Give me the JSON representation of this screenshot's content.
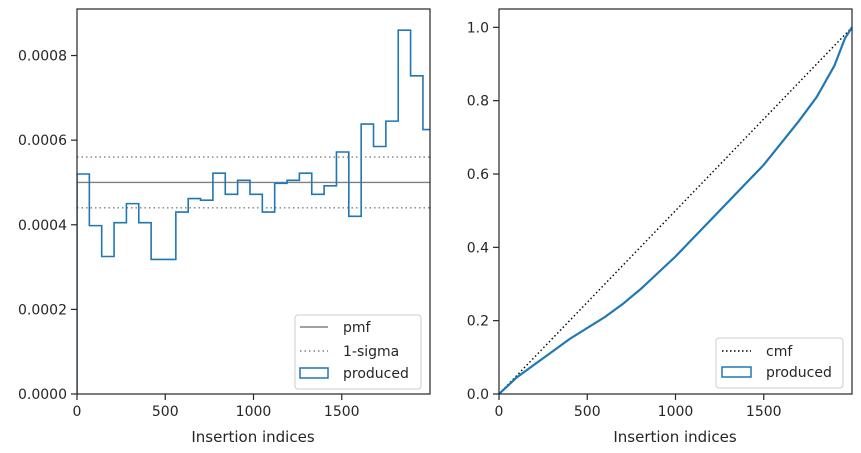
{
  "chart_data": [
    {
      "type": "histogram",
      "xlabel": "Insertion indices",
      "ylabel": "",
      "xlim": [
        0,
        2000
      ],
      "ylim": [
        0,
        0.00091
      ],
      "x_ticks": [
        0,
        500,
        1000,
        1500
      ],
      "x_tick_labels": [
        "0",
        "500",
        "1000",
        "1500"
      ],
      "y_ticks": [
        0,
        0.0002,
        0.0004,
        0.0006,
        0.0008
      ],
      "y_tick_labels": [
        "0.0000",
        "0.0002",
        "0.0004",
        "0.0006",
        "0.0008"
      ],
      "legend_position": "lower-right",
      "reference_lines": [
        {
          "name": "pmf",
          "value": 0.0005,
          "style": "solid",
          "color": "#808080"
        },
        {
          "name": "1-sigma",
          "value": 0.00056,
          "style": "dotted",
          "color": "#808080"
        },
        {
          "name": "1-sigma",
          "value": 0.00044,
          "style": "dotted",
          "color": "#808080"
        }
      ],
      "series": [
        {
          "name": "produced",
          "color": "#1f77b4",
          "bin_width": 70,
          "values": [
            0.00052,
            0.000398,
            0.000325,
            0.000405,
            0.00045,
            0.000405,
            0.000318,
            0.000318,
            0.00043,
            0.000462,
            0.000458,
            0.000522,
            0.000472,
            0.000505,
            0.000472,
            0.00043,
            0.000498,
            0.000505,
            0.000522,
            0.000472,
            0.000492,
            0.000572,
            0.00042,
            0.000638,
            0.000585,
            0.000645,
            0.00086,
            0.000752,
            0.000625
          ]
        }
      ],
      "legend": [
        "pmf",
        "1-sigma",
        "produced"
      ]
    },
    {
      "type": "line",
      "xlabel": "Insertion indices",
      "ylabel": "",
      "xlim": [
        0,
        2000
      ],
      "ylim": [
        0,
        1.05
      ],
      "x_ticks": [
        0,
        500,
        1000,
        1500
      ],
      "x_tick_labels": [
        "0",
        "500",
        "1000",
        "1500"
      ],
      "y_ticks": [
        0,
        0.2,
        0.4,
        0.6,
        0.8,
        1.0
      ],
      "y_tick_labels": [
        "0.0",
        "0.2",
        "0.4",
        "0.6",
        "0.8",
        "1.0"
      ],
      "legend_position": "lower-right",
      "series": [
        {
          "name": "cmf",
          "style": "dotted",
          "color": "#000000",
          "x": [
            0,
            2000
          ],
          "y": [
            0,
            1.0
          ]
        },
        {
          "name": "produced",
          "style": "solid",
          "color": "#1f77b4",
          "x": [
            0,
            100,
            200,
            300,
            400,
            500,
            600,
            700,
            800,
            900,
            1000,
            1100,
            1200,
            1300,
            1400,
            1500,
            1600,
            1700,
            1800,
            1900,
            1960,
            2000
          ],
          "y": [
            0,
            0.045,
            0.08,
            0.115,
            0.15,
            0.18,
            0.21,
            0.245,
            0.285,
            0.33,
            0.375,
            0.425,
            0.475,
            0.525,
            0.575,
            0.625,
            0.685,
            0.745,
            0.81,
            0.895,
            0.97,
            1.0
          ]
        }
      ],
      "legend": [
        "cmf",
        "produced"
      ]
    }
  ]
}
